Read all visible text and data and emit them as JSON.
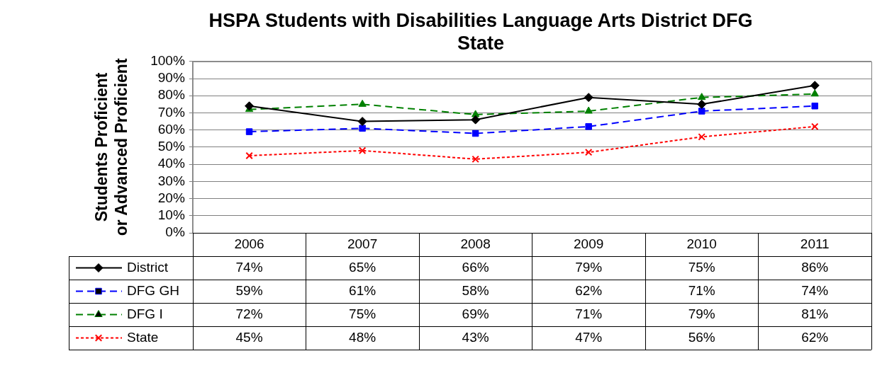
{
  "chart_data": {
    "type": "line",
    "title": "HSPA Students with Disabilities Language Arts District DFG\nState",
    "ylabel": "Students Proficient\nor Advanced Proficient",
    "categories": [
      "2006",
      "2007",
      "2008",
      "2009",
      "2010",
      "2011"
    ],
    "series": [
      {
        "name": "District",
        "color": "#000000",
        "marker": "diamond",
        "line_style": "solid",
        "values": [
          74,
          65,
          66,
          79,
          75,
          86
        ],
        "value_labels": [
          "74%",
          "65%",
          "66%",
          "79%",
          "75%",
          "86%"
        ]
      },
      {
        "name": "DFG GH",
        "color": "#0000ff",
        "marker": "square",
        "line_style": "dashed",
        "values": [
          59,
          61,
          58,
          62,
          71,
          74
        ],
        "value_labels": [
          "59%",
          "61%",
          "58%",
          "62%",
          "71%",
          "74%"
        ]
      },
      {
        "name": "DFG I",
        "color": "#008000",
        "marker": "triangle",
        "line_style": "dashed",
        "values": [
          72,
          75,
          69,
          71,
          79,
          81
        ],
        "value_labels": [
          "72%",
          "75%",
          "69%",
          "71%",
          "79%",
          "81%"
        ]
      },
      {
        "name": "State",
        "color": "#ff0000",
        "marker": "cross",
        "line_style": "dotted",
        "values": [
          45,
          48,
          43,
          47,
          56,
          62
        ],
        "value_labels": [
          "45%",
          "48%",
          "43%",
          "47%",
          "56%",
          "62%"
        ]
      }
    ],
    "ylim": [
      0,
      100
    ],
    "yticks": [
      {
        "value": 0,
        "label": "0%"
      },
      {
        "value": 10,
        "label": "10%"
      },
      {
        "value": 20,
        "label": "20%"
      },
      {
        "value": 30,
        "label": "30%"
      },
      {
        "value": 40,
        "label": "40%"
      },
      {
        "value": 50,
        "label": "50%"
      },
      {
        "value": 60,
        "label": "60%"
      },
      {
        "value": 70,
        "label": "70%"
      },
      {
        "value": 80,
        "label": "80%"
      },
      {
        "value": 90,
        "label": "90%"
      },
      {
        "value": 100,
        "label": "100%"
      }
    ],
    "grid": "y",
    "legend": "bottom left"
  }
}
